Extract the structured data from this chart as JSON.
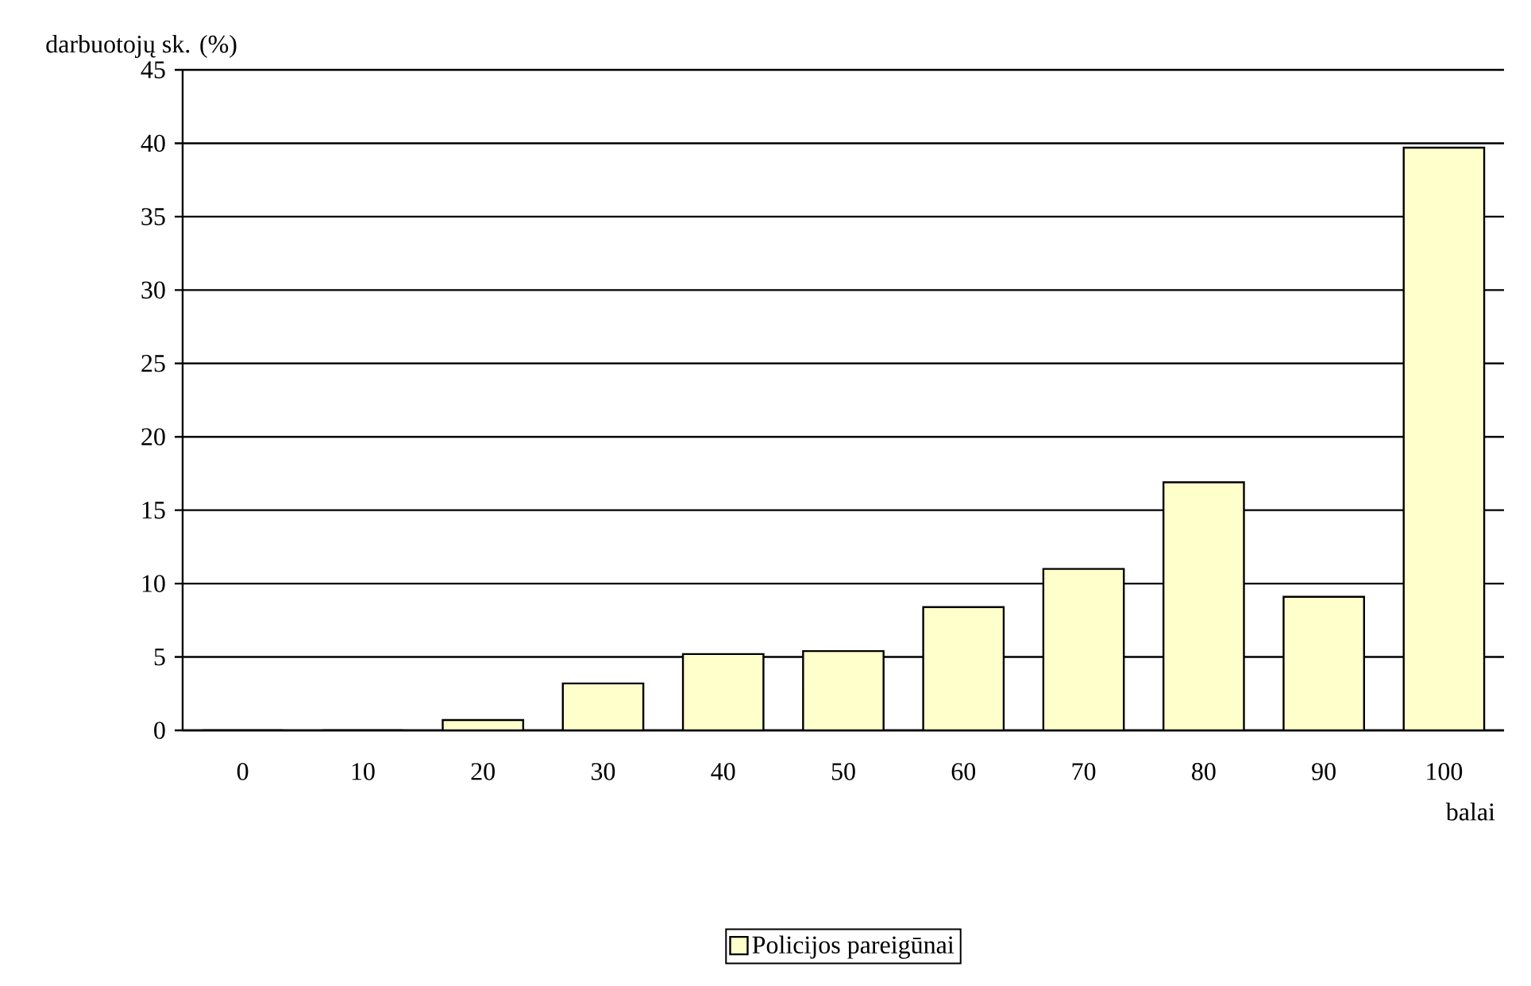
{
  "chart_data": {
    "type": "bar",
    "xlabel": "balai",
    "ylabel": "darbuotojų sk. (%)",
    "categories": [
      "0",
      "10",
      "20",
      "30",
      "40",
      "50",
      "60",
      "70",
      "80",
      "90",
      "100"
    ],
    "series": [
      {
        "name": "Policijos pareigūnai",
        "color": "#ffffcc",
        "values": [
          0,
          0,
          0.7,
          3.2,
          5.2,
          5.4,
          8.4,
          11.0,
          16.9,
          9.1,
          39.7
        ]
      }
    ],
    "ylim": [
      0,
      45
    ],
    "yticks": [
      0,
      5,
      10,
      15,
      20,
      25,
      30,
      35,
      40,
      45
    ],
    "grid": "y",
    "legend": "bottom"
  }
}
